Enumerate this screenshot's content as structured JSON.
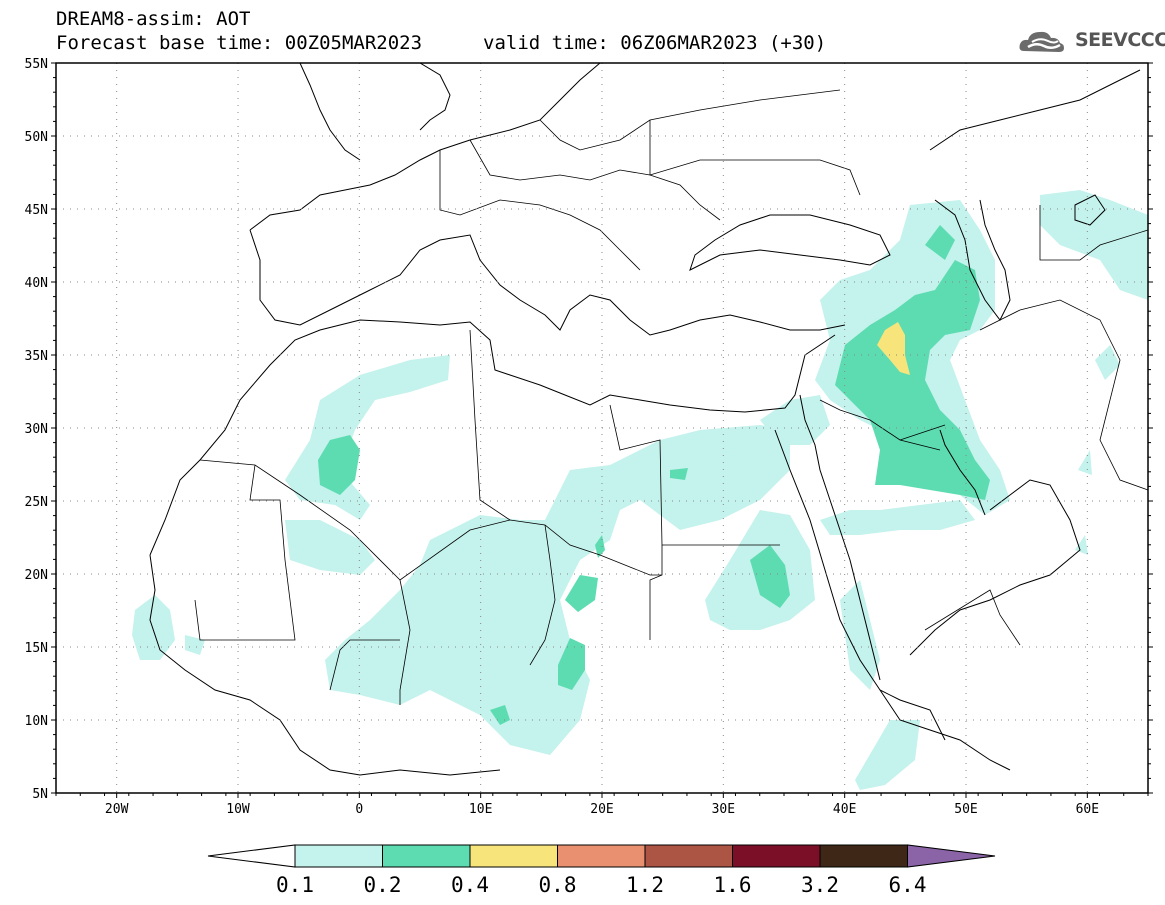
{
  "header": {
    "title": "DREAM8-assim: AOT",
    "base_time": "Forecast base time: 00Z05MAR2023",
    "valid_time": "valid time: 06Z06MAR2023 (+30)"
  },
  "logo": {
    "text": "SEEVCCC",
    "icon": "cloud-icon"
  },
  "map": {
    "lon_range": [
      -25,
      65
    ],
    "lat_range": [
      5,
      55
    ],
    "lat_labels": [
      "5N",
      "10N",
      "15N",
      "20N",
      "25N",
      "30N",
      "35N",
      "40N",
      "45N",
      "50N",
      "55N"
    ],
    "lon_labels": [
      "20W",
      "10W",
      "0",
      "10E",
      "20E",
      "30E",
      "40E",
      "50E",
      "60E"
    ],
    "grid": true
  },
  "colorbar": {
    "levels": [
      "0.1",
      "0.2",
      "0.4",
      "0.8",
      "1.2",
      "1.6",
      "3.2",
      "6.4"
    ],
    "colors": [
      "#c4f2ec",
      "#5ddcb1",
      "#f7e57b",
      "#e99070",
      "#ad5544",
      "#7c0f28",
      "#3e2716",
      "#8a64a6"
    ]
  }
}
